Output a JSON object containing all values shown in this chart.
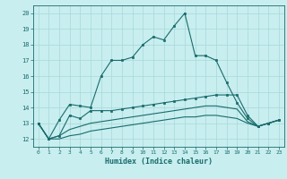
{
  "title": "",
  "xlabel": "Humidex (Indice chaleur)",
  "ylabel": "",
  "bg_color": "#c8eef0",
  "grid_color": "#a8d8d8",
  "line_color": "#1a6b6b",
  "xlim": [
    -0.5,
    23.5
  ],
  "ylim": [
    11.5,
    20.5
  ],
  "xticks": [
    0,
    1,
    2,
    3,
    4,
    5,
    6,
    7,
    8,
    9,
    10,
    11,
    12,
    13,
    14,
    15,
    16,
    17,
    18,
    19,
    20,
    21,
    22,
    23
  ],
  "yticks": [
    12,
    13,
    14,
    15,
    16,
    17,
    18,
    19,
    20
  ],
  "line1": [
    13.0,
    12.0,
    13.2,
    14.2,
    14.1,
    14.0,
    16.0,
    17.0,
    17.0,
    17.2,
    18.0,
    18.5,
    18.3,
    19.2,
    20.0,
    17.3,
    17.3,
    17.0,
    15.6,
    14.3,
    13.3,
    12.8,
    13.0,
    13.2
  ],
  "line2": [
    13.0,
    12.0,
    12.2,
    13.5,
    13.3,
    13.8,
    13.8,
    13.8,
    13.9,
    14.0,
    14.1,
    14.2,
    14.3,
    14.4,
    14.5,
    14.6,
    14.7,
    14.8,
    14.8,
    14.8,
    13.5,
    12.8,
    13.0,
    13.2
  ],
  "line3": [
    13.0,
    12.0,
    12.2,
    12.6,
    12.8,
    13.0,
    13.1,
    13.2,
    13.3,
    13.4,
    13.5,
    13.6,
    13.7,
    13.8,
    13.9,
    14.0,
    14.1,
    14.1,
    14.0,
    13.9,
    13.1,
    12.8,
    13.0,
    13.2
  ],
  "line4": [
    13.0,
    12.0,
    12.0,
    12.2,
    12.3,
    12.5,
    12.6,
    12.7,
    12.8,
    12.9,
    13.0,
    13.1,
    13.2,
    13.3,
    13.4,
    13.4,
    13.5,
    13.5,
    13.4,
    13.3,
    13.0,
    12.8,
    13.0,
    13.2
  ]
}
